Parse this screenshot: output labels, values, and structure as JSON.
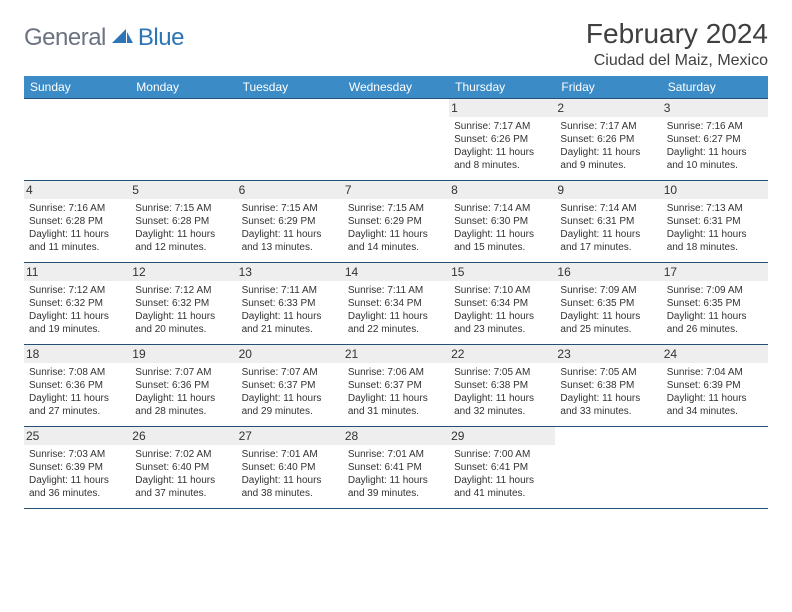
{
  "logo": {
    "general": "General",
    "blue": "Blue"
  },
  "title": {
    "month": "February 2024",
    "location": "Ciudad del Maiz, Mexico"
  },
  "colors": {
    "header_bg": "#3b8bc7",
    "header_border": "#254f73",
    "daynum_bg": "#eeeeee",
    "text": "#333333",
    "logo_gray": "#6b7280",
    "logo_blue": "#2e75b6",
    "page_bg": "#ffffff"
  },
  "typography": {
    "month_fontsize": 28,
    "location_fontsize": 16,
    "weekday_fontsize": 12,
    "daynum_fontsize": 12,
    "detail_fontsize": 10
  },
  "weekdays": [
    "Sunday",
    "Monday",
    "Tuesday",
    "Wednesday",
    "Thursday",
    "Friday",
    "Saturday"
  ],
  "weeks": [
    [
      null,
      null,
      null,
      null,
      {
        "n": "1",
        "sunrise": "7:17 AM",
        "sunset": "6:26 PM",
        "dl": "Daylight: 11 hours and 8 minutes."
      },
      {
        "n": "2",
        "sunrise": "7:17 AM",
        "sunset": "6:26 PM",
        "dl": "Daylight: 11 hours and 9 minutes."
      },
      {
        "n": "3",
        "sunrise": "7:16 AM",
        "sunset": "6:27 PM",
        "dl": "Daylight: 11 hours and 10 minutes."
      }
    ],
    [
      {
        "n": "4",
        "sunrise": "7:16 AM",
        "sunset": "6:28 PM",
        "dl": "Daylight: 11 hours and 11 minutes."
      },
      {
        "n": "5",
        "sunrise": "7:15 AM",
        "sunset": "6:28 PM",
        "dl": "Daylight: 11 hours and 12 minutes."
      },
      {
        "n": "6",
        "sunrise": "7:15 AM",
        "sunset": "6:29 PM",
        "dl": "Daylight: 11 hours and 13 minutes."
      },
      {
        "n": "7",
        "sunrise": "7:15 AM",
        "sunset": "6:29 PM",
        "dl": "Daylight: 11 hours and 14 minutes."
      },
      {
        "n": "8",
        "sunrise": "7:14 AM",
        "sunset": "6:30 PM",
        "dl": "Daylight: 11 hours and 15 minutes."
      },
      {
        "n": "9",
        "sunrise": "7:14 AM",
        "sunset": "6:31 PM",
        "dl": "Daylight: 11 hours and 17 minutes."
      },
      {
        "n": "10",
        "sunrise": "7:13 AM",
        "sunset": "6:31 PM",
        "dl": "Daylight: 11 hours and 18 minutes."
      }
    ],
    [
      {
        "n": "11",
        "sunrise": "7:12 AM",
        "sunset": "6:32 PM",
        "dl": "Daylight: 11 hours and 19 minutes."
      },
      {
        "n": "12",
        "sunrise": "7:12 AM",
        "sunset": "6:32 PM",
        "dl": "Daylight: 11 hours and 20 minutes."
      },
      {
        "n": "13",
        "sunrise": "7:11 AM",
        "sunset": "6:33 PM",
        "dl": "Daylight: 11 hours and 21 minutes."
      },
      {
        "n": "14",
        "sunrise": "7:11 AM",
        "sunset": "6:34 PM",
        "dl": "Daylight: 11 hours and 22 minutes."
      },
      {
        "n": "15",
        "sunrise": "7:10 AM",
        "sunset": "6:34 PM",
        "dl": "Daylight: 11 hours and 23 minutes."
      },
      {
        "n": "16",
        "sunrise": "7:09 AM",
        "sunset": "6:35 PM",
        "dl": "Daylight: 11 hours and 25 minutes."
      },
      {
        "n": "17",
        "sunrise": "7:09 AM",
        "sunset": "6:35 PM",
        "dl": "Daylight: 11 hours and 26 minutes."
      }
    ],
    [
      {
        "n": "18",
        "sunrise": "7:08 AM",
        "sunset": "6:36 PM",
        "dl": "Daylight: 11 hours and 27 minutes."
      },
      {
        "n": "19",
        "sunrise": "7:07 AM",
        "sunset": "6:36 PM",
        "dl": "Daylight: 11 hours and 28 minutes."
      },
      {
        "n": "20",
        "sunrise": "7:07 AM",
        "sunset": "6:37 PM",
        "dl": "Daylight: 11 hours and 29 minutes."
      },
      {
        "n": "21",
        "sunrise": "7:06 AM",
        "sunset": "6:37 PM",
        "dl": "Daylight: 11 hours and 31 minutes."
      },
      {
        "n": "22",
        "sunrise": "7:05 AM",
        "sunset": "6:38 PM",
        "dl": "Daylight: 11 hours and 32 minutes."
      },
      {
        "n": "23",
        "sunrise": "7:05 AM",
        "sunset": "6:38 PM",
        "dl": "Daylight: 11 hours and 33 minutes."
      },
      {
        "n": "24",
        "sunrise": "7:04 AM",
        "sunset": "6:39 PM",
        "dl": "Daylight: 11 hours and 34 minutes."
      }
    ],
    [
      {
        "n": "25",
        "sunrise": "7:03 AM",
        "sunset": "6:39 PM",
        "dl": "Daylight: 11 hours and 36 minutes."
      },
      {
        "n": "26",
        "sunrise": "7:02 AM",
        "sunset": "6:40 PM",
        "dl": "Daylight: 11 hours and 37 minutes."
      },
      {
        "n": "27",
        "sunrise": "7:01 AM",
        "sunset": "6:40 PM",
        "dl": "Daylight: 11 hours and 38 minutes."
      },
      {
        "n": "28",
        "sunrise": "7:01 AM",
        "sunset": "6:41 PM",
        "dl": "Daylight: 11 hours and 39 minutes."
      },
      {
        "n": "29",
        "sunrise": "7:00 AM",
        "sunset": "6:41 PM",
        "dl": "Daylight: 11 hours and 41 minutes."
      },
      null,
      null
    ]
  ],
  "labels": {
    "sunrise_prefix": "Sunrise: ",
    "sunset_prefix": "Sunset: "
  }
}
